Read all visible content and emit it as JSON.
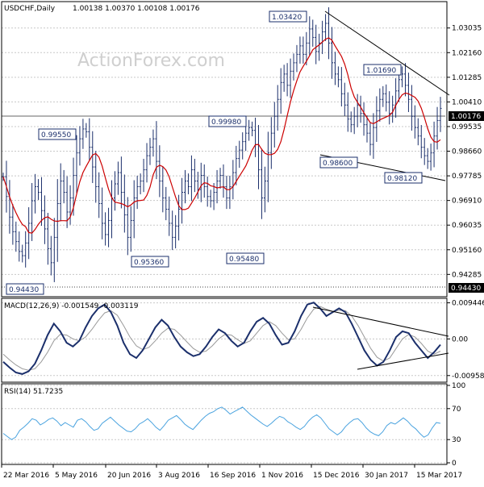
{
  "header": {
    "symbol": "USDCHF,Daily",
    "ohlc": "1.00138 1.00370 1.00108 1.00176"
  },
  "watermark": "ActionForex.com",
  "chart_data": [
    {
      "type": "candlestick",
      "title": "USDCHF,Daily",
      "ylim": [
        0.9355,
        1.038
      ],
      "y_ticks": [
        "1.03035",
        "1.02160",
        "1.01285",
        "1.00410",
        "0.99535",
        "0.98660",
        "0.97785",
        "0.96910",
        "0.96035",
        "0.95160",
        "0.94285"
      ],
      "y_tick_values": [
        1.03035,
        1.0216,
        1.01285,
        1.0041,
        0.99535,
        0.9866,
        0.97785,
        0.9691,
        0.96035,
        0.9516,
        0.94285
      ],
      "x_labels": [
        "22 Mar 2016",
        "5 May 2016",
        "20 Jun 2016",
        "3 Aug 2016",
        "16 Sep 2016",
        "1 Nov 2016",
        "15 Dec 2016",
        "30 Jan 2017",
        "15 Mar 2017"
      ],
      "close": [
        0.9775,
        0.9705,
        0.9632,
        0.958,
        0.9545,
        0.951,
        0.9495,
        0.954,
        0.961,
        0.969,
        0.974,
        0.972,
        0.9655,
        0.959,
        0.952,
        0.947,
        0.956,
        0.968,
        0.976,
        0.972,
        0.965,
        0.97,
        0.978,
        0.986,
        0.991,
        0.9945,
        0.9935,
        0.988,
        0.981,
        0.974,
        0.968,
        0.961,
        0.957,
        0.962,
        0.97,
        0.975,
        0.979,
        0.972,
        0.964,
        0.956,
        0.962,
        0.97,
        0.974,
        0.976,
        0.98,
        0.985,
        0.988,
        0.991,
        0.983,
        0.976,
        0.97,
        0.966,
        0.961,
        0.956,
        0.96,
        0.966,
        0.972,
        0.976,
        0.974,
        0.98,
        0.976,
        0.973,
        0.978,
        0.974,
        0.9705,
        0.969,
        0.972,
        0.976,
        0.978,
        0.974,
        0.97,
        0.974,
        0.979,
        0.984,
        0.987,
        0.99,
        0.993,
        0.995,
        0.994,
        0.989,
        0.98,
        0.97,
        0.976,
        0.986,
        0.993,
        0.999,
        1.005,
        1.011,
        1.014,
        1.01,
        1.015,
        1.018,
        1.021,
        1.024,
        1.021,
        1.025,
        1.03,
        1.027,
        1.022,
        1.025,
        1.029,
        1.032,
        1.025,
        1.018,
        1.014,
        1.012,
        1.007,
        1.003,
        0.998,
        0.996,
        0.999,
        1.003,
        1.0,
        0.996,
        0.993,
        0.989,
        0.995,
        1.001,
        1.005,
        1.007,
        1.004,
        1.0,
        1.003,
        1.008,
        1.012,
        1.014,
        1.01,
        1.005,
        0.999,
        0.995,
        0.992,
        0.988,
        0.985,
        0.983,
        0.986,
        0.992,
        0.9975,
        1.0018
      ],
      "annotations": [
        "1.03420",
        "1.01690",
        "0.99980",
        "0.99550",
        "0.98600",
        "0.98120",
        "0.95360",
        "0.95480",
        "0.94430"
      ],
      "levels": {
        "last": "1.00176",
        "support": "0.94430"
      }
    },
    {
      "type": "line",
      "title": "MACD(12,26,9) -0.001549 -0.003119",
      "ylim": [
        -0.0109,
        0.0102
      ],
      "y_ticks": [
        "0.009446",
        "0.00",
        "-0.009588"
      ],
      "y_tick_values": [
        0.009446,
        0.0,
        -0.009588
      ],
      "series": [
        {
          "name": "MACD",
          "values": [
            -0.006,
            -0.0075,
            -0.0088,
            -0.0092,
            -0.0085,
            -0.0065,
            -0.003,
            0.001,
            0.004,
            0.002,
            -0.001,
            -0.002,
            -0.0005,
            0.003,
            0.006,
            0.008,
            0.009,
            0.007,
            0.0035,
            -0.001,
            -0.004,
            -0.005,
            -0.003,
            0.0,
            0.003,
            0.005,
            0.0035,
            0.0005,
            -0.002,
            -0.0035,
            -0.0045,
            -0.004,
            -0.002,
            0.0005,
            0.0025,
            0.0015,
            -0.0005,
            -0.002,
            -0.001,
            0.002,
            0.0045,
            0.0055,
            0.004,
            0.001,
            -0.0015,
            -0.001,
            0.002,
            0.006,
            0.009,
            0.0095,
            0.008,
            0.006,
            0.007,
            0.008,
            0.007,
            0.004,
            0.0005,
            -0.003,
            -0.0055,
            -0.007,
            -0.006,
            -0.003,
            0.0005,
            0.002,
            0.0015,
            -0.001,
            -0.003,
            -0.005,
            -0.0035,
            -0.0015
          ]
        },
        {
          "name": "Signal",
          "values": [
            -0.004,
            -0.0055,
            -0.0068,
            -0.0078,
            -0.0082,
            -0.0078,
            -0.006,
            -0.0035,
            -0.0005,
            0.0012,
            0.001,
            0.0,
            -0.0005,
            0.0005,
            0.0025,
            0.0048,
            0.0068,
            0.0074,
            0.0062,
            0.0035,
            0.0005,
            -0.0018,
            -0.0028,
            -0.0022,
            -0.0005,
            0.0015,
            0.0028,
            0.0025,
            0.001,
            -0.0008,
            -0.0025,
            -0.0035,
            -0.0032,
            -0.0018,
            0.0,
            0.0012,
            0.001,
            -0.0002,
            -0.0012,
            -0.0005,
            0.0015,
            0.0035,
            0.0045,
            0.0035,
            0.0015,
            -0.0002,
            0.0,
            0.0025,
            0.0055,
            0.0078,
            0.0085,
            0.0078,
            0.0072,
            0.0075,
            0.0074,
            0.006,
            0.0035,
            0.0005,
            -0.0025,
            -0.0048,
            -0.0058,
            -0.005,
            -0.0025,
            0.0,
            0.0012,
            0.0005,
            -0.0012,
            -0.0032,
            -0.004,
            -0.0032
          ]
        }
      ]
    },
    {
      "type": "line",
      "title": "RSI(14) 51.7235",
      "ylim": [
        0,
        100
      ],
      "y_ticks": [
        "100",
        "70",
        "30",
        "0"
      ],
      "y_tick_values": [
        100,
        70,
        30,
        0
      ],
      "series": [
        {
          "name": "RSI",
          "values": [
            38,
            34,
            30,
            33,
            42,
            46,
            51,
            57,
            55,
            49,
            52,
            56,
            58,
            54,
            48,
            52,
            49,
            46,
            55,
            57,
            53,
            47,
            42,
            44,
            51,
            55,
            59,
            54,
            49,
            45,
            41,
            40,
            44,
            50,
            53,
            57,
            52,
            46,
            42,
            48,
            55,
            58,
            61,
            56,
            50,
            46,
            43,
            49,
            55,
            60,
            64,
            66,
            70,
            72,
            68,
            63,
            66,
            69,
            72,
            67,
            62,
            58,
            54,
            50,
            47,
            51,
            56,
            60,
            58,
            53,
            50,
            46,
            43,
            47,
            54,
            59,
            62,
            58,
            51,
            44,
            40,
            36,
            40,
            47,
            52,
            56,
            57,
            52,
            45,
            40,
            37,
            35,
            40,
            48,
            52,
            50,
            54,
            58,
            54,
            48,
            44,
            38,
            33,
            36,
            45,
            52,
            51
          ]
        }
      ]
    }
  ]
}
